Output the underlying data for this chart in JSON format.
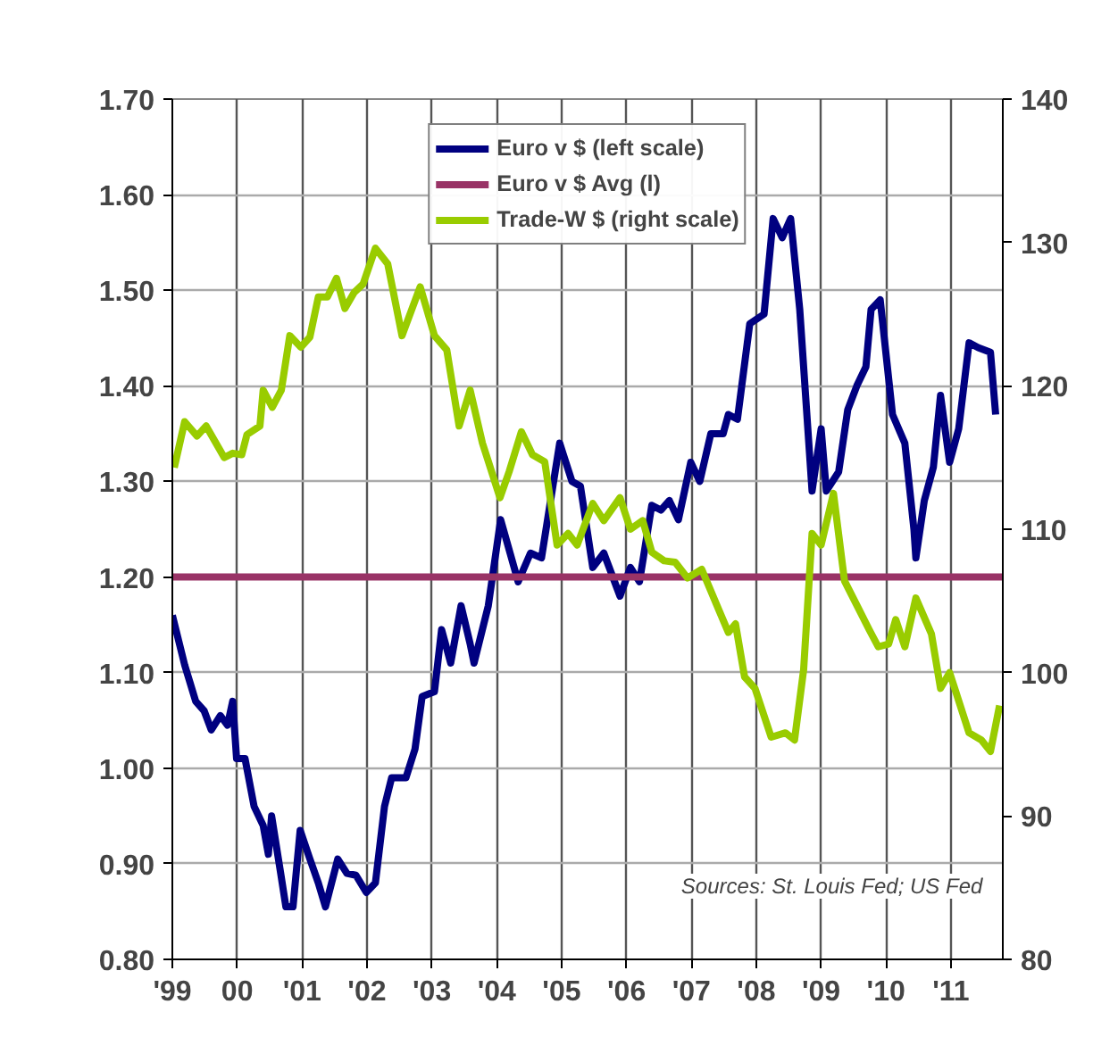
{
  "chart_data": {
    "type": "line",
    "grid": true,
    "legend": "top",
    "xlim": [
      1999,
      2011.8
    ],
    "xticks": [
      {
        "value": 1999,
        "label": "'99"
      },
      {
        "value": 2000,
        "label": "00"
      },
      {
        "value": 2001,
        "label": "'01"
      },
      {
        "value": 2002,
        "label": "'02"
      },
      {
        "value": 2003,
        "label": "'03"
      },
      {
        "value": 2004,
        "label": "'04"
      },
      {
        "value": 2005,
        "label": "'05"
      },
      {
        "value": 2006,
        "label": "'06"
      },
      {
        "value": 2007,
        "label": "'07"
      },
      {
        "value": 2008,
        "label": "'08"
      },
      {
        "value": 2009,
        "label": "'09"
      },
      {
        "value": 2010,
        "label": "'10"
      },
      {
        "value": 2011,
        "label": "'11"
      }
    ],
    "ylim": [
      0.8,
      1.7
    ],
    "yticks": [
      {
        "value": 0.8,
        "label": "0.80"
      },
      {
        "value": 0.9,
        "label": "0.90"
      },
      {
        "value": 1.0,
        "label": "1.00"
      },
      {
        "value": 1.1,
        "label": "1.10"
      },
      {
        "value": 1.2,
        "label": "1.20"
      },
      {
        "value": 1.3,
        "label": "1.30"
      },
      {
        "value": 1.4,
        "label": "1.40"
      },
      {
        "value": 1.5,
        "label": "1.50"
      },
      {
        "value": 1.6,
        "label": "1.60"
      },
      {
        "value": 1.7,
        "label": "1.70"
      }
    ],
    "y2lim": [
      80,
      140
    ],
    "y2ticks": [
      80,
      90,
      100,
      110,
      120,
      130,
      140
    ],
    "annotations": [
      "Sources:  St. Louis Fed; US Fed"
    ],
    "series": [
      {
        "name": "Euro v $ (left scale)",
        "color": "#000080",
        "x": [
          1999.0,
          1999.19,
          1999.36,
          1999.49,
          1999.6,
          1999.74,
          1999.85,
          1999.93,
          1999.99,
          2000.12,
          2000.26,
          2000.4,
          2000.48,
          2000.53,
          2000.67,
          2000.75,
          2000.86,
          2000.97,
          2001.12,
          2001.25,
          2001.36,
          2001.55,
          2001.69,
          2001.83,
          2001.99,
          2002.13,
          2002.27,
          2002.38,
          2002.6,
          2002.74,
          2002.85,
          2003.04,
          2003.15,
          2003.29,
          2003.45,
          2003.59,
          2003.65,
          2003.87,
          2004.06,
          2004.33,
          2004.52,
          2004.69,
          2004.97,
          2005.16,
          2005.29,
          2005.48,
          2005.65,
          2005.9,
          2006.06,
          2006.2,
          2006.39,
          2006.53,
          2006.66,
          2006.8,
          2006.99,
          2007.13,
          2007.3,
          2007.49,
          2007.57,
          2007.71,
          2007.9,
          2008.12,
          2008.26,
          2008.4,
          2008.53,
          2008.67,
          2008.86,
          2009.0,
          2009.08,
          2009.27,
          2009.41,
          2009.55,
          2009.69,
          2009.77,
          2009.91,
          2010.1,
          2010.29,
          2010.43,
          2010.46,
          2010.59,
          2010.73,
          2010.84,
          2010.98,
          2011.12,
          2011.28,
          2011.42,
          2011.61,
          2011.69
        ],
        "values": [
          1.16,
          1.108,
          1.07,
          1.06,
          1.04,
          1.055,
          1.045,
          1.07,
          1.01,
          1.01,
          0.96,
          0.94,
          0.91,
          0.95,
          0.89,
          0.855,
          0.855,
          0.935,
          0.905,
          0.88,
          0.855,
          0.905,
          0.89,
          0.888,
          0.87,
          0.88,
          0.96,
          0.99,
          0.99,
          1.02,
          1.075,
          1.08,
          1.145,
          1.11,
          1.17,
          1.13,
          1.11,
          1.17,
          1.26,
          1.195,
          1.225,
          1.22,
          1.34,
          1.3,
          1.295,
          1.21,
          1.225,
          1.18,
          1.21,
          1.195,
          1.275,
          1.27,
          1.28,
          1.26,
          1.32,
          1.3,
          1.35,
          1.35,
          1.37,
          1.365,
          1.465,
          1.475,
          1.575,
          1.555,
          1.575,
          1.48,
          1.29,
          1.355,
          1.29,
          1.31,
          1.375,
          1.4,
          1.42,
          1.48,
          1.49,
          1.37,
          1.34,
          1.25,
          1.22,
          1.28,
          1.315,
          1.39,
          1.32,
          1.355,
          1.445,
          1.44,
          1.435,
          1.37
        ]
      },
      {
        "name": "Euro v $ Avg (l)",
        "color": "#993366",
        "x": [
          1999,
          2011.8
        ],
        "values": [
          1.2,
          1.2
        ]
      },
      {
        "name": "Trade-W $ (right scale)",
        "color": "#99cc00",
        "axis": "y2",
        "x": [
          1999.03,
          1999.19,
          1999.38,
          1999.52,
          1999.8,
          1999.93,
          2000.07,
          2000.15,
          2000.35,
          2000.4,
          2000.54,
          2000.68,
          2000.81,
          2000.98,
          2001.12,
          2001.25,
          2001.39,
          2001.53,
          2001.66,
          2001.8,
          2001.94,
          2002.13,
          2002.32,
          2002.54,
          2002.82,
          2003.04,
          2003.23,
          2003.42,
          2003.59,
          2003.78,
          2004.05,
          2004.19,
          2004.38,
          2004.55,
          2004.74,
          2004.93,
          2005.1,
          2005.24,
          2005.48,
          2005.65,
          2005.9,
          2006.06,
          2006.25,
          2006.39,
          2006.58,
          2006.75,
          2006.94,
          2007.16,
          2007.43,
          2007.57,
          2007.68,
          2007.82,
          2007.98,
          2008.23,
          2008.45,
          2008.59,
          2008.73,
          2008.86,
          2009.0,
          2009.19,
          2009.36,
          2009.55,
          2009.74,
          2009.88,
          2010.04,
          2010.15,
          2010.29,
          2010.46,
          2010.7,
          2010.84,
          2010.98,
          2011.28,
          2011.47,
          2011.61,
          2011.75
        ],
        "values": [
          114.3,
          117.5,
          116.5,
          117.2,
          115,
          115.3,
          115.2,
          116.6,
          117.2,
          119.7,
          118.5,
          119.7,
          123.5,
          122.7,
          123.4,
          126.2,
          126.2,
          127.5,
          125.4,
          126.5,
          127.1,
          129.6,
          128.5,
          123.5,
          126.9,
          123.5,
          122.5,
          117.2,
          119.7,
          116,
          112.2,
          114,
          116.8,
          115.2,
          114.7,
          108.9,
          109.7,
          108.9,
          111.8,
          110.6,
          112.2,
          110,
          110.6,
          108.4,
          107.8,
          107.7,
          106.6,
          107.2,
          104.3,
          102.8,
          103.4,
          99.7,
          98.9,
          95.5,
          95.8,
          95.3,
          100.2,
          109.7,
          108.9,
          112.5,
          106.4,
          104.7,
          103,
          101.8,
          102,
          103.7,
          101.8,
          105.2,
          102.7,
          98.9,
          100,
          95.8,
          95.3,
          94.5,
          97.7
        ]
      }
    ]
  }
}
